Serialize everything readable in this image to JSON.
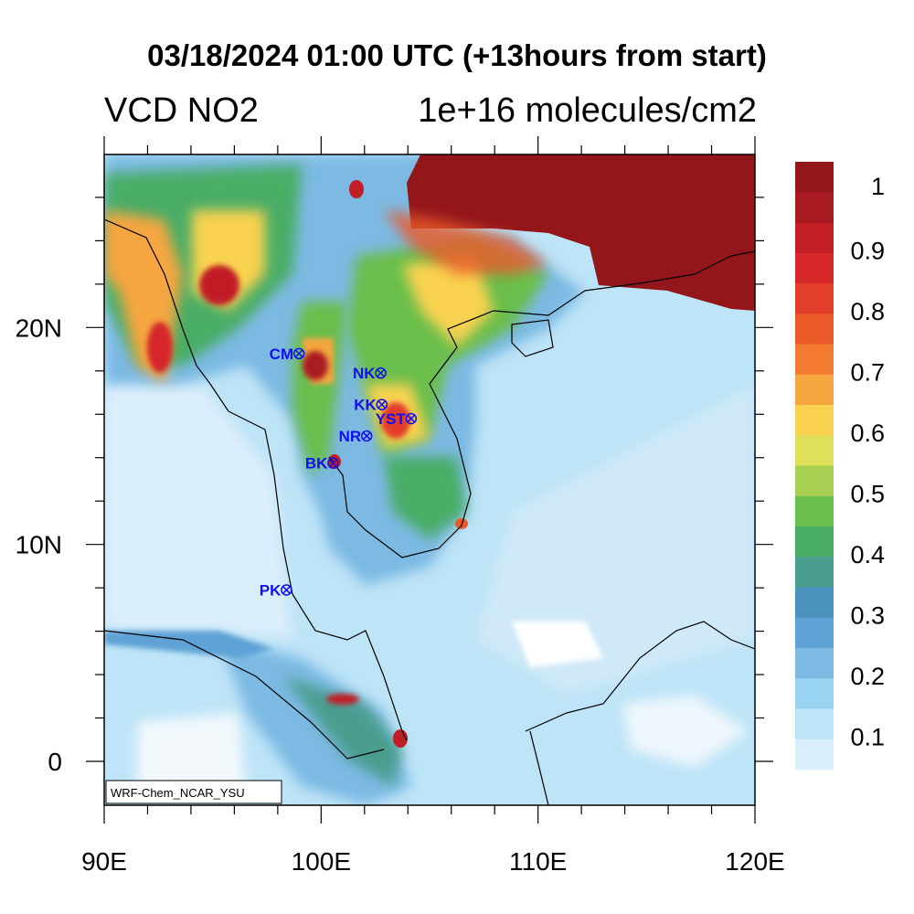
{
  "title": "03/18/2024 01:00 UTC (+13hours from start)",
  "left_label": "VCD NO2",
  "right_label": "1e+16 molecules/cm2",
  "credit": "WRF-Chem_NCAR_YSU",
  "map": {
    "lon_range": [
      90,
      120
    ],
    "lat_range": [
      -2,
      27.6
    ],
    "x_ticks": [
      {
        "v": 90,
        "label": "90E"
      },
      {
        "v": 100,
        "label": "100E"
      },
      {
        "v": 110,
        "label": "110E"
      },
      {
        "v": 120,
        "label": "120E"
      }
    ],
    "y_ticks": [
      {
        "v": 0,
        "label": "0"
      },
      {
        "v": 10,
        "label": "10N"
      },
      {
        "v": 20,
        "label": "20N"
      }
    ]
  },
  "stations": [
    {
      "name": "CM",
      "lon": 98.98,
      "lat": 18.8
    },
    {
      "name": "NK",
      "lon": 102.75,
      "lat": 17.9
    },
    {
      "name": "KK",
      "lon": 102.8,
      "lat": 16.45
    },
    {
      "name": "YST",
      "lon": 104.15,
      "lat": 15.8
    },
    {
      "name": "NR",
      "lon": 102.1,
      "lat": 15.0
    },
    {
      "name": "BK",
      "lon": 100.55,
      "lat": 13.75
    },
    {
      "name": "PK",
      "lon": 98.4,
      "lat": 7.9
    }
  ],
  "colorbar": {
    "colors": [
      "#dbeefb",
      "#bde4f7",
      "#98d4f2",
      "#7cb9e3",
      "#5fa2d6",
      "#4a93be",
      "#4a9e8e",
      "#49ad66",
      "#6abe4c",
      "#a8cf52",
      "#dfe05a",
      "#f9d250",
      "#f5a641",
      "#f37b30",
      "#ea5a29",
      "#e23e2a",
      "#d6272b",
      "#c11e25",
      "#a81a20",
      "#93161b"
    ],
    "labels": [
      "0.1",
      "0.2",
      "0.3",
      "0.4",
      "0.5",
      "0.6",
      "0.7",
      "0.8",
      "0.9",
      "1"
    ]
  }
}
